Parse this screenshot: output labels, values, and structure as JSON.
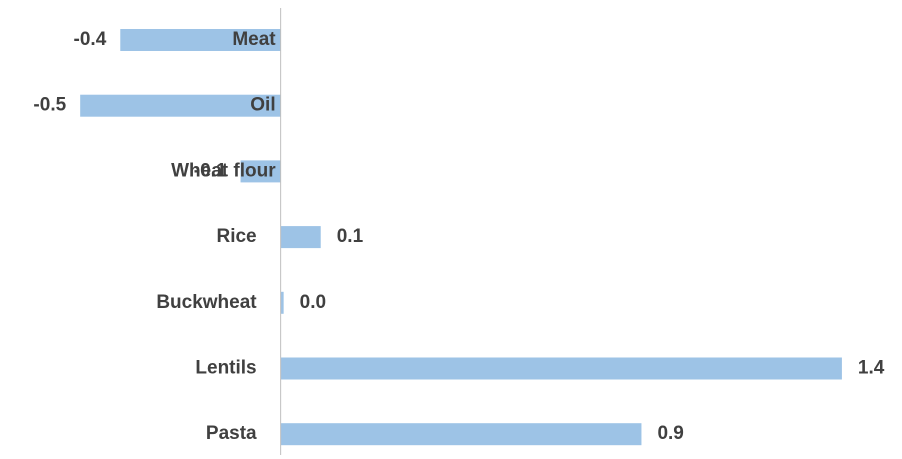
{
  "chart_data": {
    "type": "bar",
    "orientation": "horizontal",
    "categories": [
      "Meat",
      "Oil",
      "Wheat flour",
      "Rice",
      "Buckwheat",
      "Lentils",
      "Pasta"
    ],
    "values": [
      -0.4,
      -0.5,
      -0.1,
      0.1,
      0,
      1.4,
      0.9
    ],
    "value_labels": [
      "-0.4",
      "-0.5",
      "-0.1",
      "0.1",
      "0.0",
      "1.4",
      "0.9"
    ],
    "color": "#9dc3e6",
    "xlim": [
      -0.7,
      1.5
    ]
  }
}
